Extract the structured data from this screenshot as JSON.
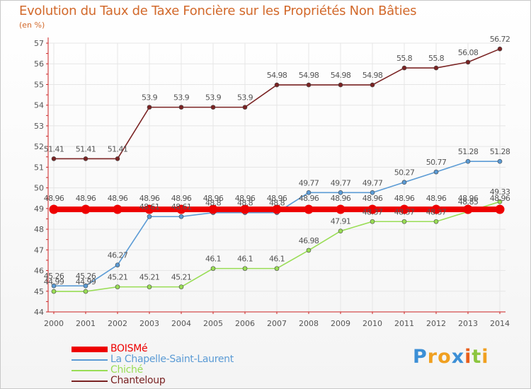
{
  "header": {
    "title": "Evolution du Taux de Taxe Foncière sur les Propriétés Non Bâties",
    "unit": "(en %)"
  },
  "brand": {
    "text": "Proxiti",
    "letters": [
      "P",
      "r",
      "o",
      "x",
      "i",
      "t",
      "i"
    ],
    "colors": [
      "#3c8fd6",
      "#f0a020",
      "#f0a020",
      "#3c8fd6",
      "#e85e1c",
      "#8cc63f",
      "#f0a020"
    ]
  },
  "colors": {
    "title": "#d2692b",
    "axis": "#cc2222",
    "grid": "#e6e6e6",
    "label": "#555555"
  },
  "chart_data": {
    "type": "line",
    "title": "Evolution du Taux de Taxe Foncière sur les Propriétés Non Bâties",
    "ylabel": "(en %)",
    "xlabel": "",
    "x": [
      "2000",
      "2001",
      "2002",
      "2003",
      "2004",
      "2005",
      "2006",
      "2007",
      "2008",
      "2009",
      "2010",
      "2011",
      "2012",
      "2013",
      "2014"
    ],
    "ylim": [
      44,
      57
    ],
    "yticks": [
      44,
      45,
      46,
      47,
      48,
      49,
      50,
      51,
      52,
      53,
      54,
      55,
      56,
      57
    ],
    "grid": true,
    "step": true,
    "legend_position": "bottom-left",
    "series": [
      {
        "name": "BOISMé",
        "color": "#ee0000",
        "values": [
          48.96,
          48.96,
          48.96,
          48.96,
          48.96,
          48.96,
          48.96,
          48.96,
          48.96,
          48.96,
          48.96,
          48.96,
          48.96,
          48.96,
          48.96
        ],
        "labels": [
          "48.96",
          "48.96",
          "48.96",
          "48.96",
          "48.96",
          "48.96",
          "48.96",
          "48.96",
          "48.96",
          "48.96",
          "48.96",
          "48.96",
          "48.96",
          "48.96",
          "48.96"
        ]
      },
      {
        "name": "La Chapelle-Saint-Laurent",
        "color": "#5b9bd5",
        "values": [
          45.26,
          45.26,
          46.27,
          48.61,
          48.61,
          48.8,
          48.8,
          48.8,
          49.77,
          49.77,
          49.77,
          50.27,
          50.77,
          51.28,
          51.28
        ],
        "labels": [
          "45.26",
          "45.26",
          "46.27",
          "48.61",
          "48.61",
          "48.8",
          "48.8",
          "48.8",
          "49.77",
          "49.77",
          "49.77",
          "50.27",
          "50.77",
          "51.28",
          "51.28"
        ]
      },
      {
        "name": "Chiché",
        "color": "#99dd55",
        "values": [
          44.99,
          44.99,
          45.21,
          45.21,
          45.21,
          46.1,
          46.1,
          46.1,
          46.98,
          47.91,
          48.37,
          48.37,
          48.37,
          48.85,
          49.33
        ],
        "labels": [
          "44.99",
          "44.99",
          "45.21",
          "45.21",
          "45.21",
          "46.1",
          "46.1",
          "46.1",
          "46.98",
          "47.91",
          "48.37",
          "48.37",
          "48.37",
          "48.85",
          "49.33"
        ]
      },
      {
        "name": "Chanteloup",
        "color": "#7a2323",
        "values": [
          51.41,
          51.41,
          51.41,
          53.9,
          53.9,
          53.9,
          53.9,
          54.98,
          54.98,
          54.98,
          54.98,
          55.8,
          55.8,
          56.08,
          56.72
        ],
        "labels": [
          "51.41",
          "51.41",
          "51.41",
          "53.9",
          "53.9",
          "53.9",
          "53.9",
          "54.98",
          "54.98",
          "54.98",
          "54.98",
          "55.8",
          "55.8",
          "56.08",
          "56.72"
        ]
      }
    ]
  }
}
